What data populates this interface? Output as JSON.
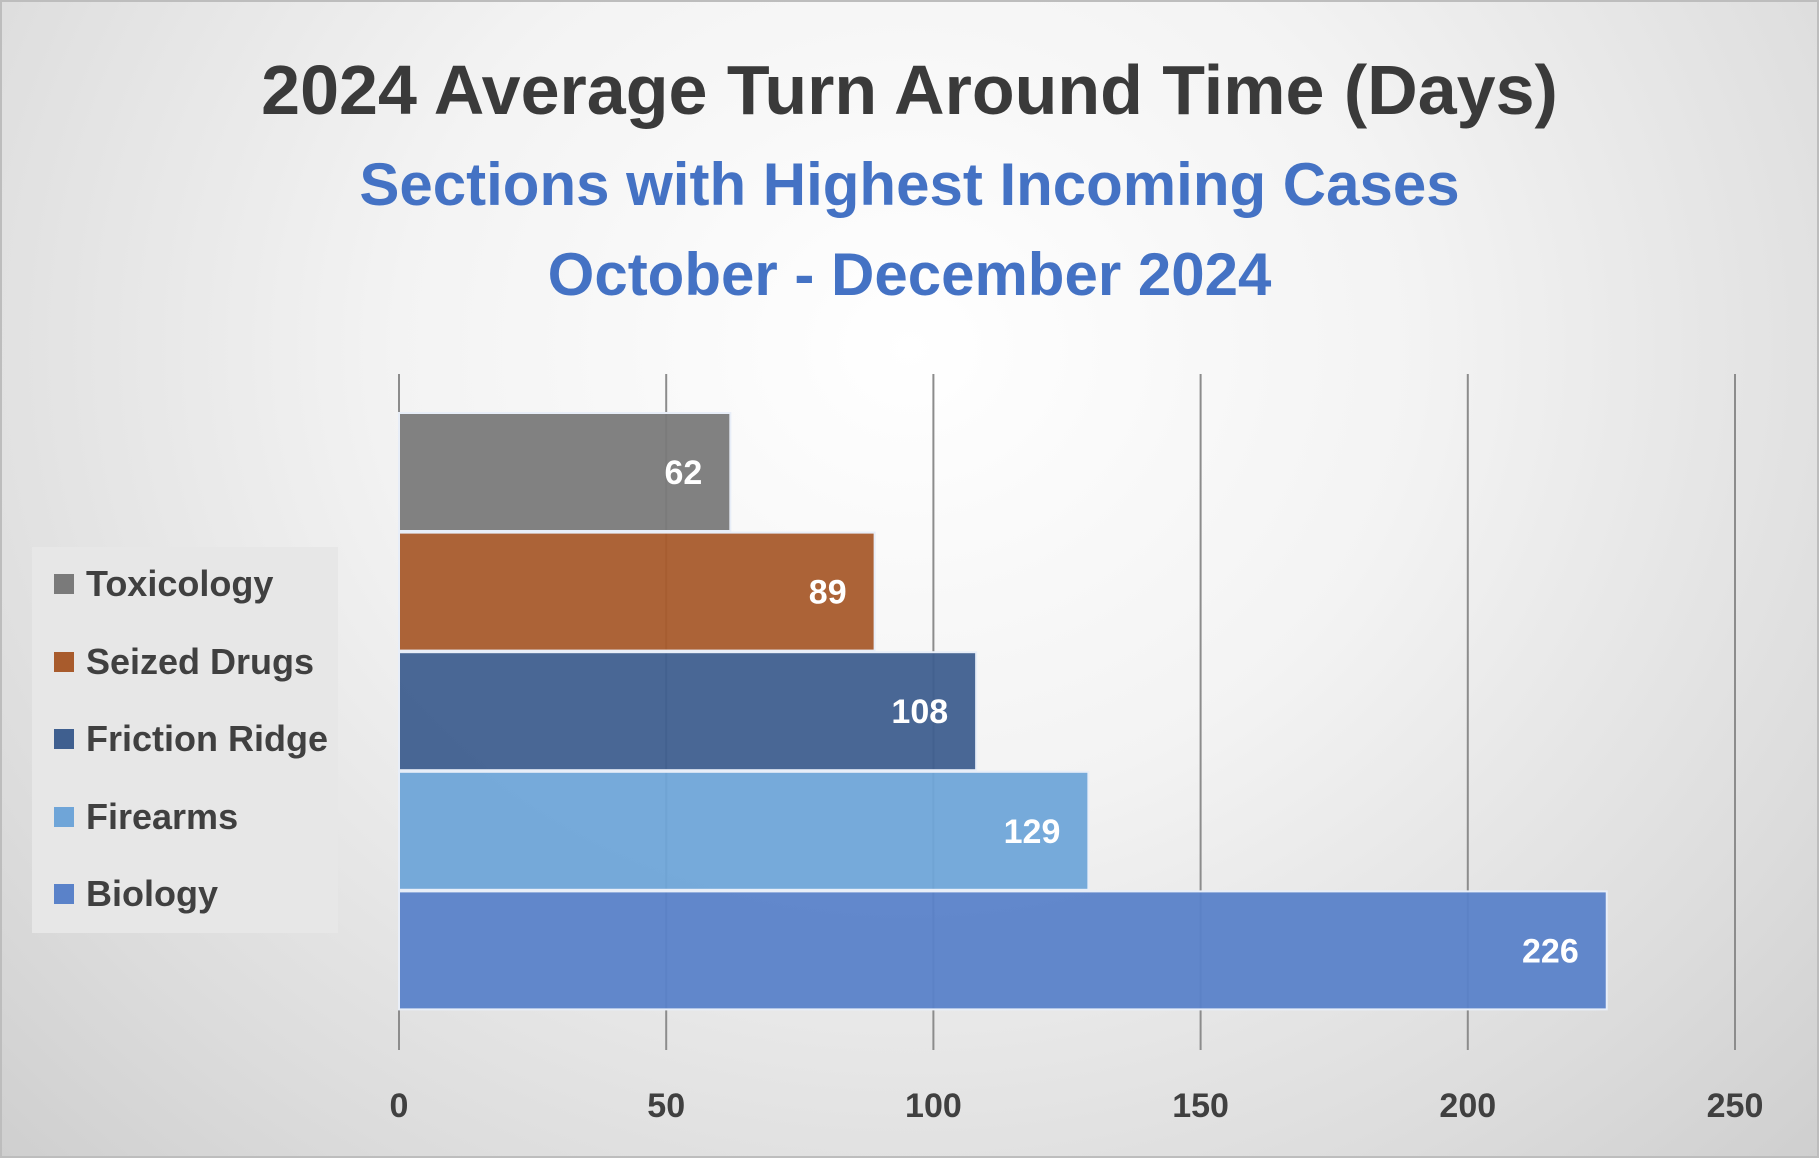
{
  "chart_data": {
    "type": "bar",
    "orientation": "horizontal",
    "title": "2024 Average Turn Around Time (Days)",
    "subtitle": "Sections with Highest Incoming Cases",
    "subtitle2": "October - December 2024",
    "categories": [
      "Toxicology",
      "Seized Drugs",
      "Friction Ridge",
      "Firearms",
      "Biology"
    ],
    "values": [
      62,
      89,
      108,
      129,
      226
    ],
    "colors": [
      "#7a7a7a",
      "#a85b2c",
      "#3f5f8f",
      "#6fa5d8",
      "#5a82c9"
    ],
    "data_labels": [
      "62",
      "89",
      "108",
      "129",
      "226"
    ],
    "xlim": [
      0,
      250
    ],
    "xticks": [
      0,
      50,
      100,
      150,
      200,
      250
    ],
    "xtick_labels": [
      "0",
      "50",
      "100",
      "150",
      "200",
      "250"
    ],
    "grid": "vertical",
    "legend_position": "left"
  }
}
